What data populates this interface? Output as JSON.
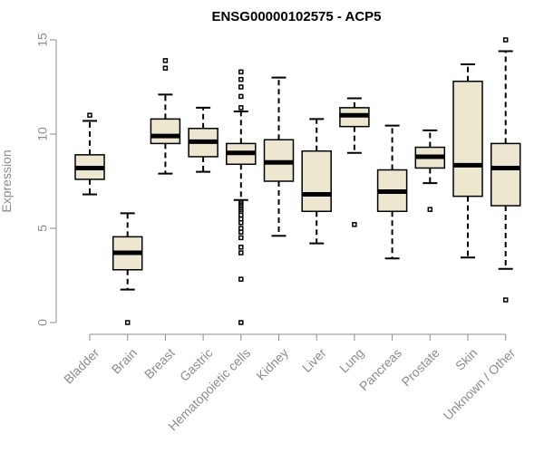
{
  "chart_data": {
    "type": "boxplot",
    "title": "ENSG00000102575 - ACP5",
    "xlabel": "",
    "ylabel": "Expression",
    "ylim": [
      0,
      15
    ],
    "yticks": [
      0,
      5,
      10,
      15
    ],
    "box_fill": "#ede7cf",
    "box_stroke": "#000000",
    "axis_color": "#8c8c8c",
    "categories": [
      "Bladder",
      "Brain",
      "Breast",
      "Gastric",
      "Hematopoietic cells",
      "Kidney",
      "Liver",
      "Lung",
      "Pancreas",
      "Prostate",
      "Skin",
      "Unknown / Other"
    ],
    "boxes": [
      {
        "category": "Bladder",
        "whisker_low": 6.8,
        "q1": 7.6,
        "median": 8.2,
        "q3": 8.9,
        "whisker_high": 10.7,
        "outliers": [
          11.0
        ]
      },
      {
        "category": "Brain",
        "whisker_low": 1.75,
        "q1": 2.8,
        "median": 3.7,
        "q3": 4.55,
        "whisker_high": 5.8,
        "outliers": [
          0.0
        ]
      },
      {
        "category": "Breast",
        "whisker_low": 7.9,
        "q1": 9.5,
        "median": 9.9,
        "q3": 10.8,
        "whisker_high": 12.1,
        "outliers": [
          13.5,
          13.9
        ]
      },
      {
        "category": "Gastric",
        "whisker_low": 8.0,
        "q1": 8.8,
        "median": 9.6,
        "q3": 10.3,
        "whisker_high": 11.4,
        "outliers": []
      },
      {
        "category": "Hematopoietic cells",
        "whisker_low": 6.5,
        "q1": 8.4,
        "median": 9.0,
        "q3": 9.5,
        "whisker_high": 11.2,
        "outliers": [
          13.3,
          12.9,
          12.5,
          12.0,
          11.4,
          6.4,
          6.3,
          6.2,
          6.0,
          5.9,
          5.7,
          5.5,
          5.3,
          5.0,
          4.8,
          4.5,
          4.0,
          3.7,
          2.3,
          0.0
        ]
      },
      {
        "category": "Kidney",
        "whisker_low": 4.6,
        "q1": 7.5,
        "median": 8.5,
        "q3": 9.7,
        "whisker_high": 13.0,
        "outliers": []
      },
      {
        "category": "Liver",
        "whisker_low": 4.2,
        "q1": 5.9,
        "median": 6.8,
        "q3": 9.1,
        "whisker_high": 10.8,
        "outliers": []
      },
      {
        "category": "Lung",
        "whisker_low": 9.0,
        "q1": 10.4,
        "median": 11.0,
        "q3": 11.4,
        "whisker_high": 11.9,
        "outliers": [
          5.2
        ]
      },
      {
        "category": "Pancreas",
        "whisker_low": 3.4,
        "q1": 5.9,
        "median": 6.95,
        "q3": 8.1,
        "whisker_high": 10.45,
        "outliers": []
      },
      {
        "category": "Prostate",
        "whisker_low": 7.4,
        "q1": 8.2,
        "median": 8.8,
        "q3": 9.3,
        "whisker_high": 10.2,
        "outliers": [
          6.0
        ]
      },
      {
        "category": "Skin",
        "whisker_low": 3.45,
        "q1": 6.7,
        "median": 8.35,
        "q3": 12.8,
        "whisker_high": 13.7,
        "outliers": []
      },
      {
        "category": "Unknown / Other",
        "whisker_low": 2.85,
        "q1": 6.2,
        "median": 8.2,
        "q3": 9.5,
        "whisker_high": 14.4,
        "outliers": [
          15.0,
          1.2
        ]
      }
    ]
  }
}
